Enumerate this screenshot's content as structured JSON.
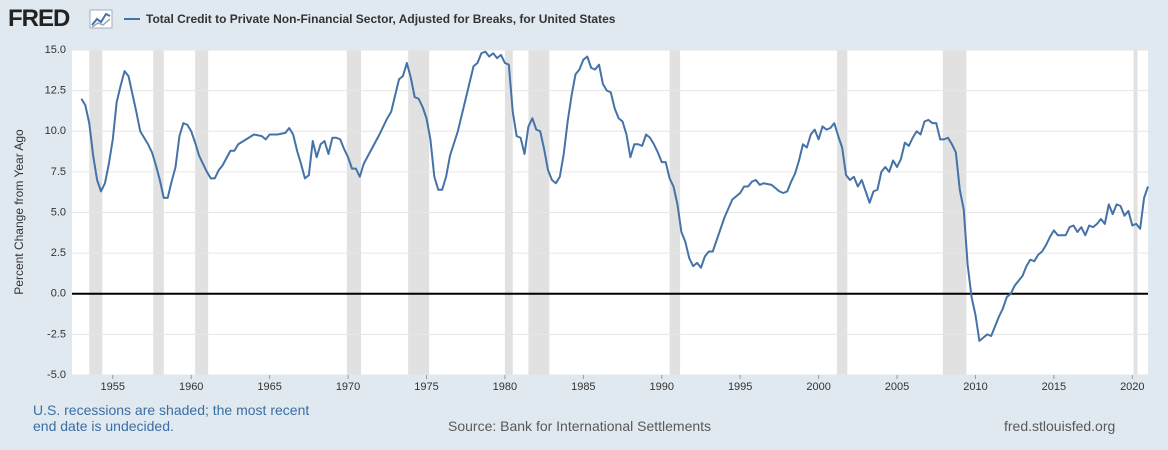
{
  "chart_data": {
    "type": "line",
    "logo": "FRED",
    "y_label": "Percent Change from Year Ago",
    "note": "U.S. recessions are shaded; the most recent end date is undecided.",
    "source": "Source: Bank for International Settlements",
    "site": "fred.stlouisfed.org",
    "xlim": [
      1952.4,
      2021.0
    ],
    "xticks": [
      1955,
      1960,
      1965,
      1970,
      1975,
      1980,
      1985,
      1990,
      1995,
      2000,
      2005,
      2010,
      2015,
      2020
    ],
    "ylim": [
      -5,
      15
    ],
    "yticks": [
      {
        "value": -5,
        "label": "-5.0"
      },
      {
        "value": -2.5,
        "label": "-2.5"
      },
      {
        "value": 0,
        "label": "0.0"
      },
      {
        "value": 2.5,
        "label": "2.5"
      },
      {
        "value": 5,
        "label": "5.0"
      },
      {
        "value": 7.5,
        "label": "7.5"
      },
      {
        "value": 10,
        "label": "10.0"
      },
      {
        "value": 12.5,
        "label": "12.5"
      },
      {
        "value": 15,
        "label": "15.0"
      }
    ],
    "grid": true,
    "baseline": 0,
    "recession_color": "#e1e1e1",
    "recessions": [
      [
        1953.5,
        1954.33
      ],
      [
        1957.58,
        1958.25
      ],
      [
        1960.25,
        1961.08
      ],
      [
        1969.92,
        1970.83
      ],
      [
        1973.83,
        1975.17
      ],
      [
        1980.0,
        1980.5
      ],
      [
        1981.5,
        1982.83
      ],
      [
        1990.5,
        1991.17
      ],
      [
        2001.17,
        2001.83
      ],
      [
        2007.92,
        2009.42
      ],
      [
        2020.08,
        2020.33
      ]
    ],
    "x": [
      1953.0,
      1953.25,
      1953.5,
      1953.75,
      1954.0,
      1954.25,
      1954.5,
      1954.75,
      1955.0,
      1955.25,
      1955.5,
      1955.75,
      1956.0,
      1956.25,
      1956.5,
      1956.75,
      1957.0,
      1957.25,
      1957.5,
      1957.75,
      1958.0,
      1958.25,
      1958.5,
      1958.75,
      1959.0,
      1959.25,
      1959.5,
      1959.75,
      1960.0,
      1960.25,
      1960.5,
      1960.75,
      1961.0,
      1961.25,
      1961.5,
      1961.75,
      1962.0,
      1962.5,
      1962.75,
      1963.0,
      1963.5,
      1964.0,
      1964.5,
      1964.75,
      1965.0,
      1965.5,
      1966.0,
      1966.25,
      1966.5,
      1966.75,
      1967.0,
      1967.25,
      1967.5,
      1967.75,
      1968.0,
      1968.25,
      1968.5,
      1968.75,
      1969.0,
      1969.25,
      1969.5,
      1969.75,
      1970.0,
      1970.25,
      1970.5,
      1970.75,
      1971.0,
      1971.5,
      1972.0,
      1972.5,
      1972.75,
      1973.0,
      1973.25,
      1973.5,
      1973.75,
      1974.0,
      1974.25,
      1974.5,
      1974.75,
      1975.0,
      1975.25,
      1975.5,
      1975.75,
      1976.0,
      1976.25,
      1976.5,
      1977.0,
      1977.5,
      1978.0,
      1978.25,
      1978.5,
      1978.75,
      1979.0,
      1979.25,
      1979.5,
      1979.75,
      1980.0,
      1980.25,
      1980.5,
      1980.75,
      1981.0,
      1981.25,
      1981.5,
      1981.75,
      1982.0,
      1982.25,
      1982.5,
      1982.75,
      1983.0,
      1983.25,
      1983.5,
      1983.75,
      1984.0,
      1984.25,
      1984.5,
      1984.75,
      1985.0,
      1985.25,
      1985.5,
      1985.75,
      1986.0,
      1986.25,
      1986.5,
      1986.75,
      1987.0,
      1987.25,
      1987.5,
      1987.75,
      1988.0,
      1988.25,
      1988.5,
      1988.75,
      1989.0,
      1989.25,
      1989.5,
      1989.75,
      1990.0,
      1990.25,
      1990.5,
      1990.75,
      1991.0,
      1991.25,
      1991.5,
      1991.75,
      1992.0,
      1992.25,
      1992.5,
      1992.75,
      1993.0,
      1993.25,
      1993.5,
      1994.0,
      1994.5,
      1995.0,
      1995.25,
      1995.5,
      1995.75,
      1996.0,
      1996.25,
      1996.5,
      1997.0,
      1997.5,
      1997.75,
      1998.0,
      1998.25,
      1998.5,
      1998.75,
      1999.0,
      1999.25,
      1999.5,
      1999.75,
      2000.0,
      2000.25,
      2000.5,
      2000.75,
      2001.0,
      2001.25,
      2001.5,
      2001.75,
      2002.0,
      2002.25,
      2002.5,
      2002.75,
      2003.0,
      2003.25,
      2003.5,
      2003.75,
      2004.0,
      2004.25,
      2004.5,
      2004.75,
      2005.0,
      2005.25,
      2005.5,
      2005.75,
      2006.0,
      2006.25,
      2006.5,
      2006.75,
      2007.0,
      2007.25,
      2007.5,
      2007.75,
      2008.0,
      2008.25,
      2008.5,
      2008.75,
      2009.0,
      2009.25,
      2009.5,
      2009.75,
      2010.0,
      2010.25,
      2010.5,
      2010.75,
      2011.0,
      2011.25,
      2011.5,
      2011.75,
      2012.0,
      2012.25,
      2012.5,
      2012.75,
      2013.0,
      2013.25,
      2013.5,
      2013.75,
      2014.0,
      2014.25,
      2014.5,
      2014.75,
      2015.0,
      2015.25,
      2015.5,
      2015.75,
      2016.0,
      2016.25,
      2016.5,
      2016.75,
      2017.0,
      2017.25,
      2017.5,
      2017.75,
      2018.0,
      2018.25,
      2018.5,
      2018.75,
      2019.0,
      2019.25,
      2019.5,
      2019.75,
      2020.0,
      2020.25,
      2020.5,
      2020.75,
      2021.0
    ],
    "series": [
      {
        "name": "Total Credit to Private Non-Financial Sector, Adjusted for Breaks, for United States",
        "color": "#4572a7",
        "values": [
          12.0,
          11.6,
          10.5,
          8.5,
          7.0,
          6.3,
          6.8,
          8.0,
          9.5,
          11.8,
          12.8,
          13.7,
          13.4,
          12.3,
          11.2,
          10.0,
          9.6,
          9.2,
          8.7,
          7.9,
          7.0,
          5.9,
          5.9,
          6.9,
          7.8,
          9.7,
          10.5,
          10.4,
          10.0,
          9.3,
          8.5,
          8.0,
          7.5,
          7.1,
          7.1,
          7.6,
          7.9,
          8.8,
          8.8,
          9.2,
          9.5,
          9.8,
          9.7,
          9.5,
          9.8,
          9.8,
          9.9,
          10.2,
          9.8,
          8.8,
          8.0,
          7.1,
          7.3,
          9.4,
          8.4,
          9.2,
          9.4,
          8.6,
          9.6,
          9.6,
          9.5,
          8.9,
          8.4,
          7.7,
          7.7,
          7.2,
          8.0,
          8.9,
          9.8,
          10.8,
          11.2,
          12.2,
          13.2,
          13.4,
          14.2,
          13.3,
          12.1,
          12.0,
          11.5,
          10.8,
          9.5,
          7.2,
          6.4,
          6.4,
          7.2,
          8.5,
          10.0,
          12.0,
          14.0,
          14.2,
          14.8,
          14.9,
          14.6,
          14.8,
          14.5,
          14.7,
          14.2,
          14.1,
          11.2,
          9.7,
          9.6,
          8.6,
          10.3,
          10.8,
          10.1,
          10.0,
          8.9,
          7.6,
          7.0,
          6.8,
          7.2,
          8.6,
          10.6,
          12.2,
          13.5,
          13.8,
          14.4,
          14.6,
          13.9,
          13.8,
          14.1,
          12.9,
          12.5,
          12.4,
          11.4,
          10.8,
          10.6,
          9.8,
          8.4,
          9.2,
          9.2,
          9.1,
          9.8,
          9.6,
          9.2,
          8.7,
          8.1,
          8.1,
          7.1,
          6.6,
          5.5,
          3.8,
          3.2,
          2.2,
          1.7,
          1.9,
          1.6,
          2.3,
          2.6,
          2.6,
          3.3,
          4.7,
          5.8,
          6.2,
          6.6,
          6.6,
          6.9,
          7.0,
          6.7,
          6.8,
          6.7,
          6.3,
          6.2,
          6.3,
          6.9,
          7.4,
          8.2,
          9.2,
          9.0,
          9.8,
          10.1,
          9.5,
          10.3,
          10.1,
          10.2,
          10.5,
          9.7,
          9.0,
          7.3,
          7.0,
          7.2,
          6.6,
          7.0,
          6.3,
          5.6,
          6.3,
          6.4,
          7.5,
          7.8,
          7.5,
          8.2,
          7.8,
          8.3,
          9.3,
          9.1,
          9.6,
          10.0,
          9.8,
          10.6,
          10.7,
          10.5,
          10.5,
          9.5,
          9.5,
          9.6,
          9.2,
          8.7,
          6.4,
          5.2,
          1.8,
          -0.2,
          -1.3,
          -2.9,
          -2.7,
          -2.5,
          -2.6,
          -2.0,
          -1.4,
          -0.9,
          -0.2,
          0.0,
          0.5,
          0.8,
          1.1,
          1.7,
          2.1,
          2.0,
          2.4,
          2.6,
          3.0,
          3.5,
          3.9,
          3.6,
          3.6,
          3.6,
          4.1,
          4.2,
          3.8,
          4.1,
          3.6,
          4.2,
          4.1,
          4.3,
          4.6,
          4.3,
          5.5,
          4.9,
          5.5,
          5.4,
          4.8,
          5.1,
          4.2,
          4.3,
          4.0,
          5.9,
          6.6
        ]
      }
    ]
  }
}
